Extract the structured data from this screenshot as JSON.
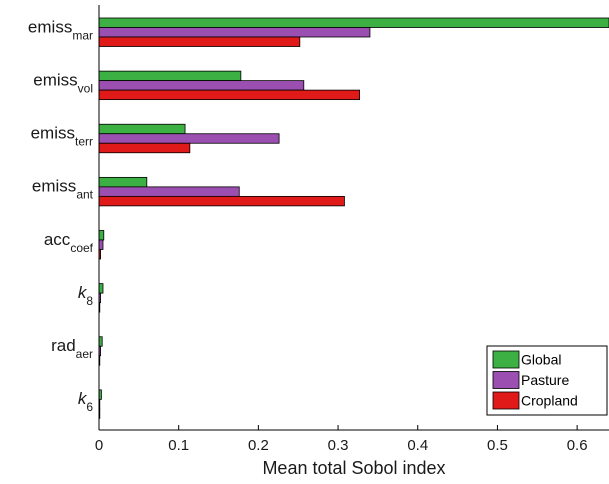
{
  "chart_data": {
    "type": "bar",
    "orientation": "horizontal",
    "xlabel": "Mean total Sobol index",
    "xlim": [
      0,
      0.64
    ],
    "xticks": [
      "0",
      "0.1",
      "0.2",
      "0.3",
      "0.4",
      "0.5",
      "0.6"
    ],
    "categories": [
      {
        "main": "emiss",
        "sub": "mar",
        "italic": false
      },
      {
        "main": "emiss",
        "sub": "vol",
        "italic": false
      },
      {
        "main": "emiss",
        "sub": "terr",
        "italic": false
      },
      {
        "main": "emiss",
        "sub": "ant",
        "italic": false
      },
      {
        "main": "acc",
        "sub": "coef",
        "italic": false
      },
      {
        "main": "k",
        "sub": "8",
        "italic": true
      },
      {
        "main": "rad",
        "sub": "aer",
        "italic": false
      },
      {
        "main": "k",
        "sub": "6",
        "italic": true
      }
    ],
    "series": [
      {
        "name": "Global",
        "color": "#3cb043",
        "values": [
          0.64,
          0.178,
          0.108,
          0.06,
          0.006,
          0.005,
          0.004,
          0.003
        ]
      },
      {
        "name": "Pasture",
        "color": "#9b4fb0",
        "values": [
          0.34,
          0.257,
          0.226,
          0.176,
          0.005,
          0.002,
          0.002,
          0.001
        ]
      },
      {
        "name": "Cropland",
        "color": "#e01919",
        "values": [
          0.252,
          0.327,
          0.114,
          0.308,
          0.002,
          0.001,
          0.001,
          0.0005
        ]
      }
    ],
    "legend": {
      "position": "bottom-right",
      "entries": [
        "Global",
        "Pasture",
        "Cropland"
      ]
    },
    "grid": false
  }
}
